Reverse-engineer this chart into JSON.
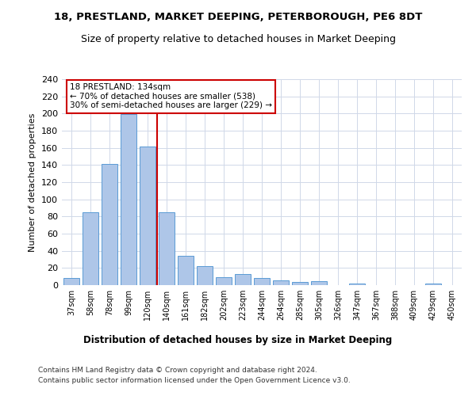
{
  "title1": "18, PRESTLAND, MARKET DEEPING, PETERBOROUGH, PE6 8DT",
  "title2": "Size of property relative to detached houses in Market Deeping",
  "xlabel": "Distribution of detached houses by size in Market Deeping",
  "ylabel": "Number of detached properties",
  "categories": [
    "37sqm",
    "58sqm",
    "78sqm",
    "99sqm",
    "120sqm",
    "140sqm",
    "161sqm",
    "182sqm",
    "202sqm",
    "223sqm",
    "244sqm",
    "264sqm",
    "285sqm",
    "305sqm",
    "326sqm",
    "347sqm",
    "367sqm",
    "388sqm",
    "409sqm",
    "429sqm",
    "450sqm"
  ],
  "values": [
    8,
    85,
    141,
    199,
    162,
    85,
    34,
    22,
    9,
    13,
    8,
    6,
    4,
    5,
    0,
    2,
    0,
    0,
    0,
    2,
    0
  ],
  "bar_color": "#aec6e8",
  "bar_edgecolor": "#5b9bd5",
  "vline_x": 4.5,
  "vline_color": "#cc0000",
  "annotation_line1": "18 PRESTLAND: 134sqm",
  "annotation_line2": "← 70% of detached houses are smaller (538)",
  "annotation_line3": "30% of semi-detached houses are larger (229) →",
  "annotation_box_color": "#ffffff",
  "annotation_box_edgecolor": "#cc0000",
  "ylim": [
    0,
    240
  ],
  "yticks": [
    0,
    20,
    40,
    60,
    80,
    100,
    120,
    140,
    160,
    180,
    200,
    220,
    240
  ],
  "footer1": "Contains HM Land Registry data © Crown copyright and database right 2024.",
  "footer2": "Contains public sector information licensed under the Open Government Licence v3.0.",
  "bg_color": "#ffffff",
  "grid_color": "#d0d8e8"
}
